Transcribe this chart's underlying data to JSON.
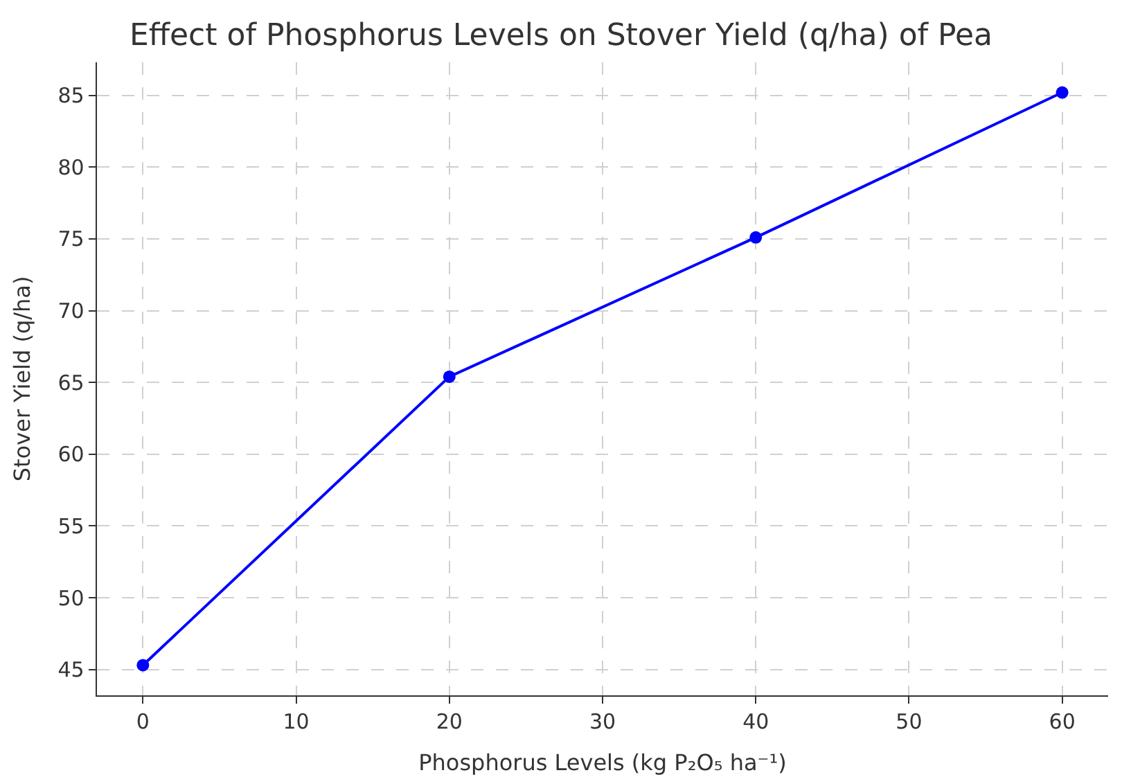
{
  "chart_data": {
    "type": "line",
    "title": "Effect of Phosphorus Levels on Stover Yield (q/ha) of Pea",
    "xlabel": "Phosphorus Levels (kg P₂O₅ ha⁻¹)",
    "ylabel": "Stover Yield (q/ha)",
    "x": [
      0,
      20,
      40,
      60
    ],
    "series": [
      {
        "color": "#0000ff",
        "values": [
          45.3,
          65.4,
          75.1,
          85.2
        ]
      }
    ],
    "xlim": [
      -3,
      63
    ],
    "xticks": [
      0,
      10,
      20,
      30,
      40,
      50,
      60
    ],
    "ylim": [
      43.2,
      87.3
    ],
    "yticks": [
      45,
      50,
      55,
      60,
      65,
      70,
      75,
      80,
      85
    ],
    "grid": true,
    "marker": "circle",
    "line_style": "solid"
  }
}
